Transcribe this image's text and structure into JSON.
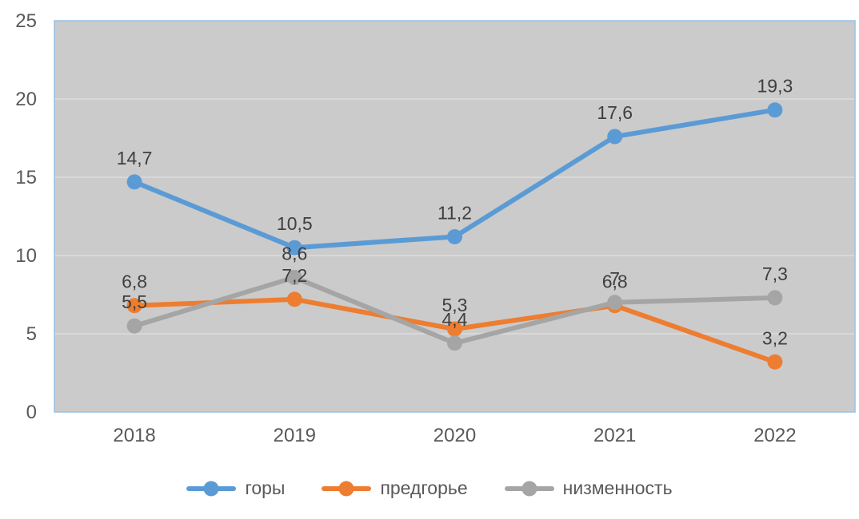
{
  "chart_data": {
    "type": "line",
    "title": "",
    "xlabel": "",
    "ylabel": "",
    "categories": [
      "2018",
      "2019",
      "2020",
      "2021",
      "2022"
    ],
    "series": [
      {
        "name": "горы",
        "color": "#5B9BD5",
        "values": [
          14.7,
          10.5,
          11.2,
          17.6,
          19.3
        ],
        "labels": [
          "14,7",
          "10,5",
          "11,2",
          "17,6",
          "19,3"
        ]
      },
      {
        "name": "предгорье",
        "color": "#ED7D31",
        "values": [
          6.8,
          7.2,
          5.3,
          6.8,
          3.2
        ],
        "labels": [
          "6,8",
          "7,2",
          "5,3",
          "6,8",
          "3,2"
        ]
      },
      {
        "name": "низменность",
        "color": "#A5A5A5",
        "values": [
          5.5,
          8.6,
          4.4,
          7,
          7.3
        ],
        "labels": [
          "5,5",
          "8,6",
          "4,4",
          "7",
          "7,3"
        ]
      }
    ],
    "ylim": [
      0,
      25
    ],
    "yticks": [
      0,
      5,
      10,
      15,
      20,
      25
    ],
    "ytick_labels": [
      "0",
      "5",
      "10",
      "15",
      "20",
      "25"
    ],
    "grid": true,
    "legend_position": "bottom",
    "colors": {
      "plot_background": "#CBCBCB",
      "plot_border": "#9DC3E6",
      "gridline": "#DCDCDC",
      "axis_text": "#595959",
      "data_label_text": "#3F3F3F"
    }
  }
}
